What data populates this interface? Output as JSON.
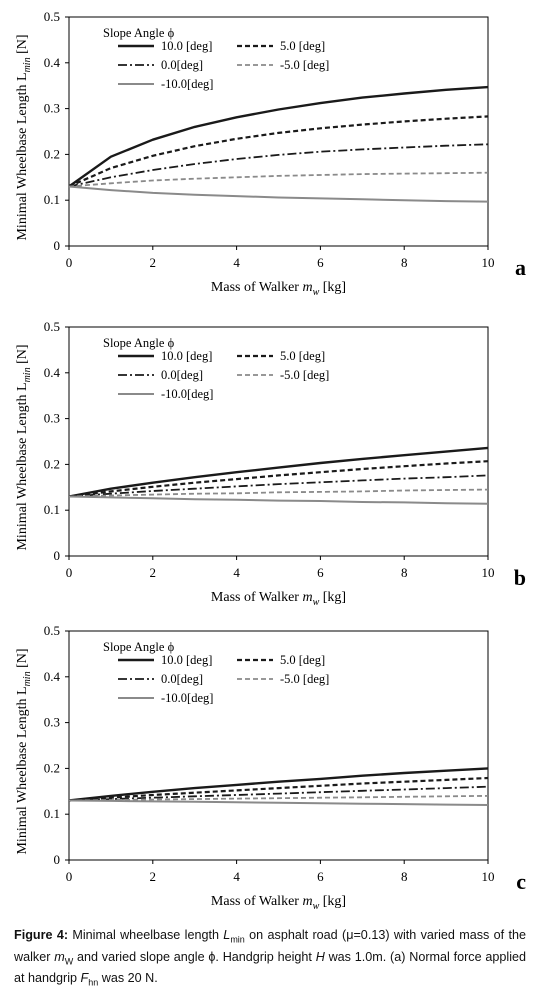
{
  "chart_data": [
    {
      "type": "line",
      "panel_label": "a",
      "xlabel_prefix": "Mass of Walker ",
      "xlabel_var": "m",
      "xlabel_sub": "w",
      "xlabel_unit": " [kg]",
      "ylabel_prefix": "Minimal Wheelbase Length L",
      "ylabel_sub": "min",
      "ylabel_unit": " [N]",
      "xlim": [
        0,
        10
      ],
      "ylim": [
        0,
        0.5
      ],
      "xticks": [
        "0",
        "2",
        "4",
        "6",
        "8",
        "10"
      ],
      "yticks": [
        "0",
        "0.1",
        "0.2",
        "0.3",
        "0.4",
        "0.5"
      ],
      "legend_title": "Slope Angle ϕ",
      "x": [
        0,
        1,
        2,
        3,
        4,
        5,
        6,
        7,
        8,
        9,
        10
      ],
      "series": [
        {
          "name": "10.0 [deg]",
          "style": "solid-dark",
          "values": [
            0.13,
            0.195,
            0.232,
            0.26,
            0.281,
            0.298,
            0.312,
            0.324,
            0.333,
            0.341,
            0.347
          ]
        },
        {
          "name": "5.0 [deg]",
          "style": "dash-dark",
          "values": [
            0.13,
            0.17,
            0.197,
            0.218,
            0.234,
            0.247,
            0.257,
            0.265,
            0.272,
            0.278,
            0.283
          ]
        },
        {
          "name": "0.0[deg]",
          "style": "dashdot-dark",
          "values": [
            0.13,
            0.15,
            0.166,
            0.179,
            0.19,
            0.199,
            0.206,
            0.211,
            0.215,
            0.219,
            0.222
          ]
        },
        {
          "name": "-5.0 [deg]",
          "style": "dash-gray",
          "values": [
            0.13,
            0.137,
            0.143,
            0.147,
            0.15,
            0.153,
            0.155,
            0.157,
            0.158,
            0.159,
            0.16
          ]
        },
        {
          "name": "-10.0[deg]",
          "style": "solid-gray",
          "values": [
            0.13,
            0.122,
            0.116,
            0.112,
            0.109,
            0.106,
            0.104,
            0.102,
            0.1,
            0.098,
            0.097
          ]
        }
      ]
    },
    {
      "type": "line",
      "panel_label": "b",
      "xlabel_prefix": "Mass of Walker ",
      "xlabel_var": "m",
      "xlabel_sub": "w",
      "xlabel_unit": " [kg]",
      "ylabel_prefix": "Minimal Wheelbase Length L",
      "ylabel_sub": "min",
      "ylabel_unit": " [N]",
      "xlim": [
        0,
        10
      ],
      "ylim": [
        0,
        0.5
      ],
      "xticks": [
        "0",
        "2",
        "4",
        "6",
        "8",
        "10"
      ],
      "yticks": [
        "0",
        "0.1",
        "0.2",
        "0.3",
        "0.4",
        "0.5"
      ],
      "legend_title": "Slope Angle ϕ",
      "x": [
        0,
        1,
        2,
        3,
        4,
        5,
        6,
        7,
        8,
        9,
        10
      ],
      "series": [
        {
          "name": "10.0 [deg]",
          "style": "solid-dark",
          "values": [
            0.13,
            0.147,
            0.16,
            0.172,
            0.183,
            0.193,
            0.203,
            0.212,
            0.22,
            0.228,
            0.236
          ]
        },
        {
          "name": "5.0 [deg]",
          "style": "dash-dark",
          "values": [
            0.13,
            0.141,
            0.151,
            0.16,
            0.168,
            0.176,
            0.183,
            0.19,
            0.196,
            0.202,
            0.207
          ]
        },
        {
          "name": "0.0[deg]",
          "style": "dashdot-dark",
          "values": [
            0.13,
            0.136,
            0.142,
            0.147,
            0.152,
            0.157,
            0.161,
            0.165,
            0.169,
            0.172,
            0.176
          ]
        },
        {
          "name": "-5.0 [deg]",
          "style": "dash-gray",
          "values": [
            0.13,
            0.132,
            0.134,
            0.136,
            0.137,
            0.139,
            0.14,
            0.141,
            0.143,
            0.144,
            0.145
          ]
        },
        {
          "name": "-10.0[deg]",
          "style": "solid-gray",
          "values": [
            0.13,
            0.128,
            0.126,
            0.124,
            0.123,
            0.121,
            0.12,
            0.118,
            0.117,
            0.115,
            0.114
          ]
        }
      ]
    },
    {
      "type": "line",
      "panel_label": "c",
      "xlabel_prefix": "Mass of Walker ",
      "xlabel_var": "m",
      "xlabel_sub": "w",
      "xlabel_unit": " [kg]",
      "ylabel_prefix": "Minimal Wheelbase Length L",
      "ylabel_sub": "min",
      "ylabel_unit": " [N]",
      "xlim": [
        0,
        10
      ],
      "ylim": [
        0,
        0.5
      ],
      "xticks": [
        "0",
        "2",
        "4",
        "6",
        "8",
        "10"
      ],
      "yticks": [
        "0",
        "0.1",
        "0.2",
        "0.3",
        "0.4",
        "0.5"
      ],
      "legend_title": "Slope Angle ϕ",
      "x": [
        0,
        1,
        2,
        3,
        4,
        5,
        6,
        7,
        8,
        9,
        10
      ],
      "series": [
        {
          "name": "10.0 [deg]",
          "style": "solid-dark",
          "values": [
            0.13,
            0.14,
            0.149,
            0.157,
            0.164,
            0.171,
            0.177,
            0.184,
            0.19,
            0.195,
            0.2
          ]
        },
        {
          "name": "5.0 [deg]",
          "style": "dash-dark",
          "values": [
            0.13,
            0.136,
            0.142,
            0.147,
            0.152,
            0.157,
            0.162,
            0.167,
            0.171,
            0.175,
            0.179
          ]
        },
        {
          "name": "0.0[deg]",
          "style": "dashdot-dark",
          "values": [
            0.13,
            0.133,
            0.136,
            0.139,
            0.142,
            0.145,
            0.148,
            0.151,
            0.154,
            0.157,
            0.16
          ]
        },
        {
          "name": "-5.0 [deg]",
          "style": "dash-gray",
          "values": [
            0.13,
            0.131,
            0.132,
            0.133,
            0.134,
            0.135,
            0.136,
            0.137,
            0.138,
            0.139,
            0.14
          ]
        },
        {
          "name": "-10.0[deg]",
          "style": "solid-gray",
          "values": [
            0.13,
            0.129,
            0.128,
            0.127,
            0.126,
            0.125,
            0.124,
            0.123,
            0.122,
            0.121,
            0.12
          ]
        }
      ]
    }
  ],
  "caption": {
    "figure_label": "Figure 4:",
    "text_1": " Minimal wheelbase length ",
    "var_L": "L",
    "sub_min": "min",
    "text_2": " on asphalt road (μ=0.13) with varied mass of the walker ",
    "var_m": "m",
    "sub_W": "W",
    "text_3": " and varied slope angle ϕ. Handgrip height ",
    "var_H": "H",
    "text_4": " was 1.0m. (a) Normal force applied at handgrip ",
    "var_F": "F",
    "sub_hn": "hn",
    "text_5": " was 20 N."
  }
}
